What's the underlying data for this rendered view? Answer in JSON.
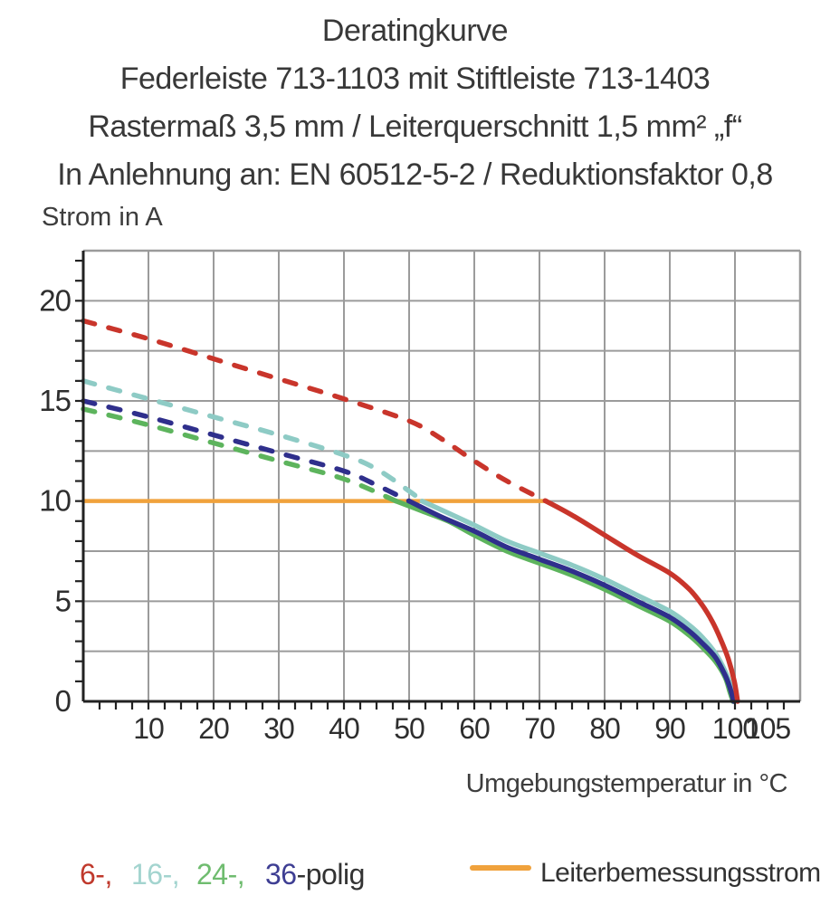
{
  "header": {
    "title": "Deratingkurve",
    "subtitle1": "Federleiste 713-1103 mit Stiftleiste 713-1403",
    "subtitle2": "Rastermaß 3,5 mm / Leiterquerschnitt 1,5 mm² „f“",
    "subtitle3": "In Anlehnung an: EN 60512-5-2 / Reduktionsfaktor 0,8"
  },
  "axes": {
    "y_title": "Strom in A",
    "x_title": "Umgebungstemperatur in °C"
  },
  "legend": {
    "series_labels": [
      {
        "text": "6-,",
        "color": "#c0392c"
      },
      {
        "text": "16-,",
        "color": "#a3d4cf"
      },
      {
        "text": "24-,",
        "color": "#6fbc6f"
      },
      {
        "text": "36",
        "color": "#3e3e93"
      },
      {
        "text": "-polig",
        "color": "#333333"
      }
    ],
    "rated_label": "Leiterbemessungsstrom",
    "rated_color": "#f0a23c"
  },
  "chart_data": {
    "type": "line",
    "title": "Deratingkurve",
    "xlabel": "Umgebungstemperatur in °C",
    "ylabel": "Strom in A",
    "xlim": [
      0,
      110
    ],
    "ylim": [
      0,
      22.5
    ],
    "x_tick_labels": [
      10,
      20,
      30,
      40,
      50,
      60,
      70,
      80,
      90,
      100,
      105
    ],
    "x_minor_step": 2.5,
    "y_tick_labels": [
      0,
      5,
      10,
      15,
      20
    ],
    "y_minor_step": 1,
    "x_grid_step": 10,
    "y_grid_step": 2.5,
    "grid_on": true,
    "grid_color": "#9b9b9b",
    "axis_color": "#222222",
    "legend_position": "bottom",
    "rated_current": {
      "value_a": 10,
      "x_start_c": 0,
      "x_end_c": 71,
      "color": "#f0a23c",
      "label": "Leiterbemessungsstrom"
    },
    "series": [
      {
        "name": "24-polig",
        "color": "#5db45d",
        "style": "dashed-then-solid",
        "dashed": [
          [
            0,
            14.6
          ],
          [
            10,
            13.8
          ],
          [
            20,
            12.9
          ],
          [
            30,
            12.0
          ],
          [
            40,
            11.1
          ],
          [
            48,
            10.0
          ]
        ],
        "solid": [
          [
            48,
            10.0
          ],
          [
            52,
            9.5
          ],
          [
            56,
            9.0
          ],
          [
            60,
            8.3
          ],
          [
            65,
            7.5
          ],
          [
            70,
            6.9
          ],
          [
            75,
            6.3
          ],
          [
            80,
            5.6
          ],
          [
            85,
            4.8
          ],
          [
            90,
            4.0
          ],
          [
            93,
            3.3
          ],
          [
            95,
            2.7
          ],
          [
            97,
            2.0
          ],
          [
            98.5,
            1.2
          ],
          [
            99.2,
            0.5
          ],
          [
            99.7,
            0.0
          ]
        ]
      },
      {
        "name": "16-polig",
        "color": "#8ecbc5",
        "style": "dashed-then-solid",
        "dashed": [
          [
            0,
            16.0
          ],
          [
            10,
            15.1
          ],
          [
            20,
            14.2
          ],
          [
            30,
            13.3
          ],
          [
            40,
            12.3
          ],
          [
            45,
            11.6
          ],
          [
            50,
            10.5
          ],
          [
            52,
            10.0
          ]
        ],
        "solid": [
          [
            52,
            10.0
          ],
          [
            56,
            9.4
          ],
          [
            60,
            8.8
          ],
          [
            65,
            8.0
          ],
          [
            70,
            7.4
          ],
          [
            75,
            6.8
          ],
          [
            80,
            6.1
          ],
          [
            85,
            5.3
          ],
          [
            90,
            4.5
          ],
          [
            93,
            3.8
          ],
          [
            95,
            3.2
          ],
          [
            97,
            2.4
          ],
          [
            98.5,
            1.5
          ],
          [
            99.4,
            0.7
          ],
          [
            99.9,
            0.0
          ]
        ]
      },
      {
        "name": "36-polig",
        "color": "#2f2f8c",
        "style": "dashed-then-solid",
        "dashed": [
          [
            0,
            15.0
          ],
          [
            10,
            14.2
          ],
          [
            20,
            13.3
          ],
          [
            30,
            12.4
          ],
          [
            40,
            11.5
          ],
          [
            45,
            10.8
          ],
          [
            50,
            10.0
          ]
        ],
        "solid": [
          [
            50,
            10.0
          ],
          [
            55,
            9.2
          ],
          [
            60,
            8.5
          ],
          [
            65,
            7.7
          ],
          [
            70,
            7.1
          ],
          [
            75,
            6.5
          ],
          [
            80,
            5.8
          ],
          [
            85,
            5.0
          ],
          [
            90,
            4.2
          ],
          [
            93,
            3.5
          ],
          [
            95,
            2.9
          ],
          [
            97,
            2.2
          ],
          [
            98.5,
            1.3
          ],
          [
            99.3,
            0.6
          ],
          [
            99.8,
            0.0
          ]
        ]
      },
      {
        "name": "6-polig",
        "color": "#c9352b",
        "style": "dashed-then-solid",
        "dashed": [
          [
            0,
            19.0
          ],
          [
            10,
            18.1
          ],
          [
            20,
            17.1
          ],
          [
            30,
            16.1
          ],
          [
            40,
            15.1
          ],
          [
            50,
            14.0
          ],
          [
            55,
            13.1
          ],
          [
            60,
            12.0
          ],
          [
            65,
            11.0
          ],
          [
            71,
            10.0
          ]
        ],
        "solid": [
          [
            71,
            10.0
          ],
          [
            75,
            9.3
          ],
          [
            80,
            8.3
          ],
          [
            85,
            7.3
          ],
          [
            90,
            6.4
          ],
          [
            93,
            5.6
          ],
          [
            95,
            4.8
          ],
          [
            96.5,
            4.0
          ],
          [
            97.8,
            3.1
          ],
          [
            99,
            2.1
          ],
          [
            99.9,
            1.0
          ],
          [
            100.4,
            0.0
          ]
        ]
      }
    ]
  }
}
